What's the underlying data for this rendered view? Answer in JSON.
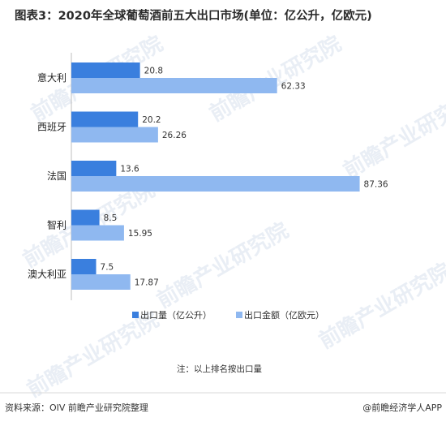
{
  "chart_data": {
    "type": "bar",
    "orientation": "horizontal",
    "title": "图表3：2020年全球葡萄酒前五大出口市场(单位：亿公升，亿欧元)",
    "categories": [
      "意大利",
      "西班牙",
      "法国",
      "智利",
      "澳大利亚"
    ],
    "series": [
      {
        "name": "出口量（亿公升）",
        "values": [
          20.8,
          20.2,
          13.6,
          8.5,
          7.5
        ],
        "color": "#3a7fde"
      },
      {
        "name": "出口金额（亿欧元）",
        "values": [
          62.33,
          26.26,
          87.36,
          15.95,
          17.87
        ],
        "color": "#8fb8f0"
      }
    ],
    "xlim": [
      0,
      100
    ],
    "grid": false,
    "legend_position": "bottom",
    "note": "注：以上排名按出口量"
  },
  "footer": {
    "source": "资料来源：OIV 前瞻产业研究院整理",
    "brand": "@前瞻经济学人APP"
  },
  "watermark": "前瞻产业研究院"
}
